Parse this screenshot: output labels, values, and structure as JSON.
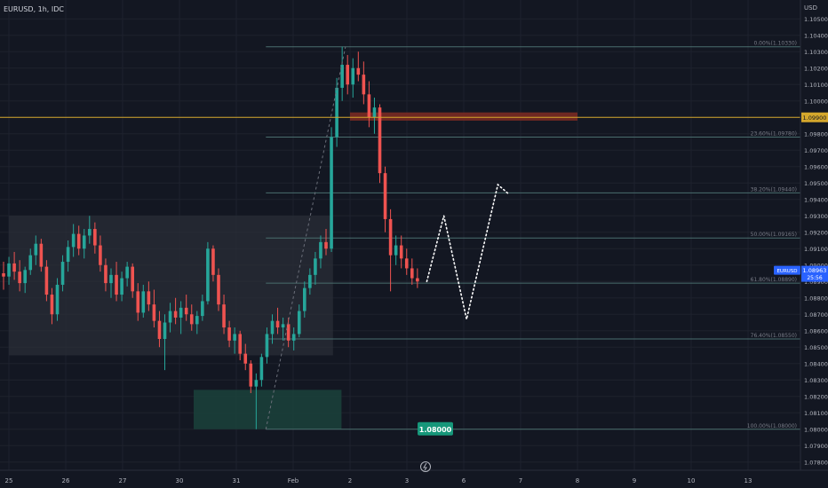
{
  "header": {
    "symbol_label": "EURUSD, 1h, IDC"
  },
  "axis": {
    "currency": "USD"
  },
  "colors": {
    "bg": "#131722",
    "grid": "#1e222d",
    "up": "#26a69a",
    "down": "#ef5350",
    "axis_text": "#b2b5be",
    "fib_line": "#4a6e6e",
    "fib_text": "#787b86",
    "level": "#d4a72c",
    "supply_zone": "#7a2a22",
    "demand_zone": "#1b3f3a",
    "range_box": "#2a2d37",
    "price_tag": "#2962ff"
  },
  "chart_data": {
    "type": "candlestick",
    "symbol": "EURUSD",
    "timeframe": "1h",
    "source": "IDC",
    "y_axis": {
      "min": 1.077,
      "max": 1.1065,
      "ticks": [
        "1.10500",
        "1.10400",
        "1.10300",
        "1.10200",
        "1.10100",
        "1.10000",
        "1.09900",
        "1.09800",
        "1.09700",
        "1.09600",
        "1.09500",
        "1.09400",
        "1.09300",
        "1.09200",
        "1.09100",
        "1.09000",
        "1.08900",
        "1.08800",
        "1.08700",
        "1.08600",
        "1.08500",
        "1.08400",
        "1.08300",
        "1.08200",
        "1.08100",
        "1.08000",
        "1.07900",
        "1.07800"
      ]
    },
    "x_axis": {
      "labels": [
        {
          "label": "25",
          "day": 0
        },
        {
          "label": "26",
          "day": 1
        },
        {
          "label": "27",
          "day": 2
        },
        {
          "label": "30",
          "day": 3
        },
        {
          "label": "31",
          "day": 4
        },
        {
          "label": "Feb",
          "day": 5
        },
        {
          "label": "2",
          "day": 6
        },
        {
          "label": "3",
          "day": 7
        },
        {
          "label": "6",
          "day": 8
        },
        {
          "label": "7",
          "day": 9
        },
        {
          "label": "8",
          "day": 10
        },
        {
          "label": "9",
          "day": 11
        },
        {
          "label": "10",
          "day": 12
        },
        {
          "label": "13",
          "day": 13
        }
      ]
    },
    "fib_levels": [
      {
        "label": "0.00%(1.10330)",
        "price": 1.1033
      },
      {
        "label": "23.60%(1.09780)",
        "price": 1.0978
      },
      {
        "label": "38.20%(1.09440)",
        "price": 1.0944
      },
      {
        "label": "50.00%(1.09165)",
        "price": 1.09165
      },
      {
        "label": "61.80%(1.08890)",
        "price": 1.0889
      },
      {
        "label": "76.40%(1.08550)",
        "price": 1.0855
      },
      {
        "label": "100.00%(1.08000)",
        "price": 1.08
      }
    ],
    "horizontal_level": {
      "price": 1.099,
      "label": "1.09900"
    },
    "current_price": {
      "symbol": "EURUSD",
      "price": "1.08963",
      "countdown": "25:56"
    },
    "target_label": "1.08000",
    "zones": [
      {
        "name": "range",
        "day_start": 0,
        "day_end": 5.7,
        "price_top": 1.093,
        "price_bottom": 1.0845
      },
      {
        "name": "demand",
        "day_start": 3.25,
        "day_end": 5.85,
        "price_top": 1.0824,
        "price_bottom": 1.08
      },
      {
        "name": "supply",
        "day_start": 6.0,
        "day_end": 10.0,
        "price_top": 1.0993,
        "price_bottom": 1.0988
      }
    ],
    "projection_path": [
      {
        "day": 7.35,
        "price": 1.089
      },
      {
        "day": 7.65,
        "price": 1.093
      },
      {
        "day": 8.05,
        "price": 1.0867
      },
      {
        "day": 8.6,
        "price": 1.0949
      },
      {
        "day": 8.8,
        "price": 1.0943
      }
    ],
    "candles": [
      {
        "o": 1.0895,
        "h": 1.0902,
        "l": 1.0885,
        "c": 1.0893
      },
      {
        "o": 1.0893,
        "h": 1.0905,
        "l": 1.0888,
        "c": 1.0901
      },
      {
        "o": 1.0901,
        "h": 1.0908,
        "l": 1.0891,
        "c": 1.0896
      },
      {
        "o": 1.0896,
        "h": 1.0903,
        "l": 1.0884,
        "c": 1.0889
      },
      {
        "o": 1.0889,
        "h": 1.0899,
        "l": 1.0883,
        "c": 1.0897
      },
      {
        "o": 1.0897,
        "h": 1.091,
        "l": 1.0894,
        "c": 1.0906
      },
      {
        "o": 1.0906,
        "h": 1.0918,
        "l": 1.09,
        "c": 1.0913
      },
      {
        "o": 1.0913,
        "h": 1.0916,
        "l": 1.0896,
        "c": 1.0899
      },
      {
        "o": 1.0899,
        "h": 1.0903,
        "l": 1.0878,
        "c": 1.0882
      },
      {
        "o": 1.0882,
        "h": 1.0886,
        "l": 1.0864,
        "c": 1.087
      },
      {
        "o": 1.087,
        "h": 1.0892,
        "l": 1.0866,
        "c": 1.0888
      },
      {
        "o": 1.0888,
        "h": 1.0906,
        "l": 1.0884,
        "c": 1.0902
      },
      {
        "o": 1.0902,
        "h": 1.0915,
        "l": 1.0896,
        "c": 1.0911
      },
      {
        "o": 1.0911,
        "h": 1.0925,
        "l": 1.0905,
        "c": 1.0919
      },
      {
        "o": 1.0919,
        "h": 1.0924,
        "l": 1.0906,
        "c": 1.091
      },
      {
        "o": 1.091,
        "h": 1.0922,
        "l": 1.0904,
        "c": 1.0918
      },
      {
        "o": 1.0918,
        "h": 1.093,
        "l": 1.0913,
        "c": 1.0922
      },
      {
        "o": 1.0922,
        "h": 1.0926,
        "l": 1.0907,
        "c": 1.0912
      },
      {
        "o": 1.0912,
        "h": 1.0918,
        "l": 1.0896,
        "c": 1.09
      },
      {
        "o": 1.09,
        "h": 1.0904,
        "l": 1.0884,
        "c": 1.0889
      },
      {
        "o": 1.0889,
        "h": 1.0898,
        "l": 1.088,
        "c": 1.0894
      },
      {
        "o": 1.0894,
        "h": 1.0902,
        "l": 1.0878,
        "c": 1.0882
      },
      {
        "o": 1.0882,
        "h": 1.0896,
        "l": 1.0878,
        "c": 1.0892
      },
      {
        "o": 1.0892,
        "h": 1.0902,
        "l": 1.0887,
        "c": 1.0899
      },
      {
        "o": 1.0899,
        "h": 1.0901,
        "l": 1.088,
        "c": 1.0884
      },
      {
        "o": 1.0884,
        "h": 1.0889,
        "l": 1.0866,
        "c": 1.0871
      },
      {
        "o": 1.0871,
        "h": 1.0888,
        "l": 1.0868,
        "c": 1.0884
      },
      {
        "o": 1.0884,
        "h": 1.089,
        "l": 1.0872,
        "c": 1.0876
      },
      {
        "o": 1.0876,
        "h": 1.0885,
        "l": 1.0862,
        "c": 1.0866
      },
      {
        "o": 1.0866,
        "h": 1.0872,
        "l": 1.085,
        "c": 1.0855
      },
      {
        "o": 1.0855,
        "h": 1.087,
        "l": 1.0836,
        "c": 1.0865
      },
      {
        "o": 1.0865,
        "h": 1.0877,
        "l": 1.0859,
        "c": 1.0872
      },
      {
        "o": 1.0872,
        "h": 1.088,
        "l": 1.0864,
        "c": 1.0868
      },
      {
        "o": 1.0868,
        "h": 1.0878,
        "l": 1.0858,
        "c": 1.0874
      },
      {
        "o": 1.0874,
        "h": 1.0882,
        "l": 1.0866,
        "c": 1.087
      },
      {
        "o": 1.087,
        "h": 1.0876,
        "l": 1.086,
        "c": 1.0864
      },
      {
        "o": 1.0864,
        "h": 1.0872,
        "l": 1.0858,
        "c": 1.0869
      },
      {
        "o": 1.0869,
        "h": 1.0882,
        "l": 1.0866,
        "c": 1.0878
      },
      {
        "o": 1.0878,
        "h": 1.0914,
        "l": 1.0876,
        "c": 1.091
      },
      {
        "o": 1.091,
        "h": 1.0912,
        "l": 1.089,
        "c": 1.0894
      },
      {
        "o": 1.0894,
        "h": 1.0898,
        "l": 1.0872,
        "c": 1.0876
      },
      {
        "o": 1.0876,
        "h": 1.0882,
        "l": 1.0858,
        "c": 1.0862
      },
      {
        "o": 1.0862,
        "h": 1.0866,
        "l": 1.085,
        "c": 1.0854
      },
      {
        "o": 1.0854,
        "h": 1.0862,
        "l": 1.0846,
        "c": 1.0858
      },
      {
        "o": 1.0858,
        "h": 1.086,
        "l": 1.0842,
        "c": 1.0846
      },
      {
        "o": 1.0846,
        "h": 1.0852,
        "l": 1.0836,
        "c": 1.084
      },
      {
        "o": 1.084,
        "h": 1.0842,
        "l": 1.0822,
        "c": 1.0826
      },
      {
        "o": 1.0826,
        "h": 1.0834,
        "l": 1.08,
        "c": 1.083
      },
      {
        "o": 1.083,
        "h": 1.0846,
        "l": 1.0826,
        "c": 1.0844
      },
      {
        "o": 1.0844,
        "h": 1.0862,
        "l": 1.084,
        "c": 1.0858
      },
      {
        "o": 1.0858,
        "h": 1.087,
        "l": 1.0852,
        "c": 1.0866
      },
      {
        "o": 1.0866,
        "h": 1.0874,
        "l": 1.0858,
        "c": 1.0862
      },
      {
        "o": 1.0862,
        "h": 1.0868,
        "l": 1.0854,
        "c": 1.0864
      },
      {
        "o": 1.0864,
        "h": 1.0868,
        "l": 1.085,
        "c": 1.0854
      },
      {
        "o": 1.0854,
        "h": 1.0862,
        "l": 1.0848,
        "c": 1.0858
      },
      {
        "o": 1.0858,
        "h": 1.0876,
        "l": 1.0856,
        "c": 1.0872
      },
      {
        "o": 1.0872,
        "h": 1.089,
        "l": 1.0868,
        "c": 1.0886
      },
      {
        "o": 1.0886,
        "h": 1.0898,
        "l": 1.0882,
        "c": 1.0894
      },
      {
        "o": 1.0894,
        "h": 1.0908,
        "l": 1.0888,
        "c": 1.0904
      },
      {
        "o": 1.0904,
        "h": 1.0918,
        "l": 1.0898,
        "c": 1.0914
      },
      {
        "o": 1.0914,
        "h": 1.0922,
        "l": 1.0906,
        "c": 1.091
      },
      {
        "o": 1.091,
        "h": 1.0984,
        "l": 1.0908,
        "c": 1.0978
      },
      {
        "o": 1.0978,
        "h": 1.1014,
        "l": 1.0972,
        "c": 1.1008
      },
      {
        "o": 1.1008,
        "h": 1.1033,
        "l": 1.1,
        "c": 1.1022
      },
      {
        "o": 1.1022,
        "h": 1.1028,
        "l": 1.1004,
        "c": 1.101
      },
      {
        "o": 1.101,
        "h": 1.1026,
        "l": 1.1002,
        "c": 1.102
      },
      {
        "o": 1.102,
        "h": 1.103,
        "l": 1.1012,
        "c": 1.1016
      },
      {
        "o": 1.1016,
        "h": 1.1024,
        "l": 1.0998,
        "c": 1.1004
      },
      {
        "o": 1.1004,
        "h": 1.1012,
        "l": 1.0984,
        "c": 1.099
      },
      {
        "o": 1.099,
        "h": 1.1002,
        "l": 1.098,
        "c": 1.0996
      },
      {
        "o": 1.0996,
        "h": 1.0998,
        "l": 1.095,
        "c": 1.0956
      },
      {
        "o": 1.0956,
        "h": 1.096,
        "l": 1.092,
        "c": 1.0928
      },
      {
        "o": 1.0928,
        "h": 1.0934,
        "l": 1.0884,
        "c": 1.0906
      },
      {
        "o": 1.0906,
        "h": 1.0918,
        "l": 1.09,
        "c": 1.0912
      },
      {
        "o": 1.0912,
        "h": 1.0918,
        "l": 1.0898,
        "c": 1.0904
      },
      {
        "o": 1.0904,
        "h": 1.091,
        "l": 1.0894,
        "c": 1.0898
      },
      {
        "o": 1.0898,
        "h": 1.0904,
        "l": 1.0888,
        "c": 1.0892
      },
      {
        "o": 1.0892,
        "h": 1.0898,
        "l": 1.0886,
        "c": 1.089
      }
    ]
  }
}
